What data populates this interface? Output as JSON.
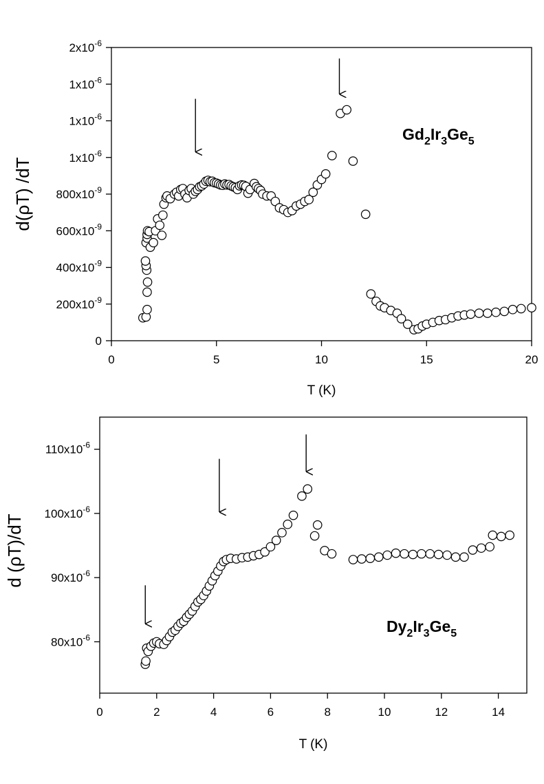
{
  "chart_data": [
    {
      "type": "scatter",
      "compound": {
        "base": [
          "Gd",
          "Ir",
          "Ge"
        ],
        "subs": [
          "2",
          "3",
          "5"
        ]
      },
      "xlabel": "T (K)",
      "ylabel": "d(ρT) /dT",
      "xlim": [
        0,
        20
      ],
      "ylim": [
        0,
        1600
      ],
      "x_ticks": [
        0,
        5,
        10,
        15,
        20
      ],
      "x_tick_labels": [
        "0",
        "5",
        "10",
        "15",
        "20"
      ],
      "y_ticks": [
        0,
        200,
        400,
        600,
        800,
        1000,
        1200,
        1400,
        1600
      ],
      "y_tick_labels": [
        {
          "mant": "0",
          "exp": ""
        },
        {
          "mant": "200x10",
          "exp": "-9"
        },
        {
          "mant": "400x10",
          "exp": "-9"
        },
        {
          "mant": "600x10",
          "exp": "-9"
        },
        {
          "mant": "800x10",
          "exp": "-9"
        },
        {
          "mant": "1x10",
          "exp": "-6"
        },
        {
          "mant": "1x10",
          "exp": "-6"
        },
        {
          "mant": "1x10",
          "exp": "-6"
        },
        {
          "mant": "2x10",
          "exp": "-6"
        }
      ],
      "y_unit_note": "values in units of 1e-9",
      "arrows": [
        {
          "x": 4.0,
          "y_top": 1320,
          "y_bottom": 1030
        },
        {
          "x": 10.85,
          "y_top": 1540,
          "y_bottom": 1345
        }
      ],
      "points": [
        [
          1.5,
          125
        ],
        [
          1.65,
          130
        ],
        [
          1.7,
          170
        ],
        [
          1.7,
          265
        ],
        [
          1.72,
          320
        ],
        [
          1.68,
          385
        ],
        [
          1.65,
          410
        ],
        [
          1.62,
          435
        ],
        [
          1.65,
          535
        ],
        [
          1.7,
          560
        ],
        [
          1.7,
          580
        ],
        [
          1.72,
          600
        ],
        [
          1.8,
          595
        ],
        [
          1.85,
          510
        ],
        [
          2.0,
          535
        ],
        [
          2.1,
          600
        ],
        [
          2.2,
          665
        ],
        [
          2.3,
          630
        ],
        [
          2.4,
          575
        ],
        [
          2.45,
          685
        ],
        [
          2.5,
          745
        ],
        [
          2.6,
          780
        ],
        [
          2.65,
          790
        ],
        [
          2.8,
          775
        ],
        [
          3.0,
          800
        ],
        [
          3.1,
          810
        ],
        [
          3.2,
          790
        ],
        [
          3.3,
          825
        ],
        [
          3.4,
          830
        ],
        [
          3.5,
          800
        ],
        [
          3.6,
          780
        ],
        [
          3.7,
          820
        ],
        [
          3.8,
          830
        ],
        [
          3.9,
          800
        ],
        [
          4.0,
          815
        ],
        [
          4.1,
          825
        ],
        [
          4.2,
          840
        ],
        [
          4.3,
          845
        ],
        [
          4.4,
          855
        ],
        [
          4.5,
          870
        ],
        [
          4.6,
          875
        ],
        [
          4.7,
          868
        ],
        [
          4.8,
          870
        ],
        [
          4.9,
          862
        ],
        [
          5.0,
          860
        ],
        [
          5.1,
          855
        ],
        [
          5.2,
          850
        ],
        [
          5.3,
          848
        ],
        [
          5.4,
          855
        ],
        [
          5.5,
          850
        ],
        [
          5.6,
          852
        ],
        [
          5.7,
          845
        ],
        [
          5.8,
          840
        ],
        [
          5.9,
          835
        ],
        [
          6.0,
          825
        ],
        [
          6.1,
          845
        ],
        [
          6.2,
          850
        ],
        [
          6.3,
          848
        ],
        [
          6.4,
          842
        ],
        [
          6.5,
          805
        ],
        [
          6.6,
          825
        ],
        [
          6.8,
          858
        ],
        [
          6.9,
          840
        ],
        [
          7.0,
          830
        ],
        [
          7.1,
          820
        ],
        [
          7.2,
          800
        ],
        [
          7.4,
          790
        ],
        [
          7.6,
          790
        ],
        [
          7.8,
          760
        ],
        [
          8.0,
          725
        ],
        [
          8.2,
          715
        ],
        [
          8.4,
          700
        ],
        [
          8.6,
          710
        ],
        [
          8.8,
          735
        ],
        [
          9.0,
          745
        ],
        [
          9.2,
          760
        ],
        [
          9.4,
          770
        ],
        [
          9.6,
          810
        ],
        [
          9.8,
          850
        ],
        [
          10.0,
          880
        ],
        [
          10.2,
          910
        ],
        [
          10.5,
          1010
        ],
        [
          10.9,
          1240
        ],
        [
          11.2,
          1260
        ],
        [
          11.5,
          980
        ],
        [
          12.1,
          690
        ],
        [
          12.35,
          255
        ],
        [
          12.6,
          215
        ],
        [
          12.8,
          190
        ],
        [
          13.0,
          180
        ],
        [
          13.3,
          165
        ],
        [
          13.6,
          150
        ],
        [
          13.8,
          120
        ],
        [
          14.1,
          90
        ],
        [
          14.4,
          60
        ],
        [
          14.6,
          65
        ],
        [
          14.8,
          80
        ],
        [
          15.0,
          90
        ],
        [
          15.3,
          100
        ],
        [
          15.6,
          110
        ],
        [
          15.9,
          115
        ],
        [
          16.2,
          125
        ],
        [
          16.5,
          135
        ],
        [
          16.8,
          140
        ],
        [
          17.1,
          145
        ],
        [
          17.5,
          150
        ],
        [
          17.9,
          150
        ],
        [
          18.3,
          155
        ],
        [
          18.7,
          160
        ],
        [
          19.1,
          170
        ],
        [
          19.5,
          175
        ],
        [
          20.0,
          180
        ]
      ]
    },
    {
      "type": "scatter",
      "compound": {
        "base": [
          "Dy",
          "Ir",
          "Ge"
        ],
        "subs": [
          "2",
          "3",
          "5"
        ]
      },
      "xlabel": "T (K)",
      "ylabel": "d (ρT)/dT",
      "xlim": [
        0,
        15
      ],
      "ylim": [
        72,
        115
      ],
      "x_ticks": [
        0,
        2,
        4,
        6,
        8,
        10,
        12,
        14
      ],
      "x_tick_labels": [
        "0",
        "2",
        "4",
        "6",
        "8",
        "10",
        "12",
        "14"
      ],
      "y_ticks": [
        80,
        90,
        100,
        110
      ],
      "y_tick_labels": [
        {
          "mant": "80x10",
          "exp": "-6"
        },
        {
          "mant": "90x10",
          "exp": "-6"
        },
        {
          "mant": "100x10",
          "exp": "-6"
        },
        {
          "mant": "110x10",
          "exp": "-6"
        }
      ],
      "y_unit_note": "values in units of 1e-6",
      "arrows": [
        {
          "x": 1.6,
          "y_top": 88.8,
          "y_bottom": 82.8
        },
        {
          "x": 4.2,
          "y_top": 108.5,
          "y_bottom": 100.2
        },
        {
          "x": 7.25,
          "y_top": 112.3,
          "y_bottom": 106.5
        }
      ],
      "points": [
        [
          1.6,
          76.5
        ],
        [
          1.62,
          77.0
        ],
        [
          1.65,
          79.0
        ],
        [
          1.7,
          78.5
        ],
        [
          1.8,
          79.3
        ],
        [
          1.9,
          79.8
        ],
        [
          2.0,
          80.0
        ],
        [
          2.1,
          79.7
        ],
        [
          2.25,
          79.6
        ],
        [
          2.35,
          80.2
        ],
        [
          2.45,
          80.8
        ],
        [
          2.55,
          81.5
        ],
        [
          2.65,
          81.8
        ],
        [
          2.75,
          82.4
        ],
        [
          2.85,
          82.9
        ],
        [
          2.95,
          83.2
        ],
        [
          3.05,
          83.8
        ],
        [
          3.15,
          84.3
        ],
        [
          3.25,
          84.8
        ],
        [
          3.35,
          85.5
        ],
        [
          3.45,
          86.2
        ],
        [
          3.55,
          86.6
        ],
        [
          3.65,
          87.2
        ],
        [
          3.75,
          87.9
        ],
        [
          3.85,
          88.7
        ],
        [
          3.95,
          89.5
        ],
        [
          4.05,
          90.3
        ],
        [
          4.15,
          91.0
        ],
        [
          4.25,
          91.8
        ],
        [
          4.35,
          92.5
        ],
        [
          4.45,
          92.8
        ],
        [
          4.6,
          93.0
        ],
        [
          4.8,
          92.9
        ],
        [
          5.0,
          93.1
        ],
        [
          5.2,
          93.2
        ],
        [
          5.4,
          93.4
        ],
        [
          5.6,
          93.6
        ],
        [
          5.8,
          94.0
        ],
        [
          6.0,
          94.8
        ],
        [
          6.2,
          95.8
        ],
        [
          6.4,
          97.0
        ],
        [
          6.6,
          98.3
        ],
        [
          6.8,
          99.7
        ],
        [
          7.1,
          102.7
        ],
        [
          7.3,
          103.8
        ],
        [
          7.55,
          96.5
        ],
        [
          7.65,
          98.2
        ],
        [
          7.9,
          94.2
        ],
        [
          8.15,
          93.7
        ],
        [
          8.9,
          92.8
        ],
        [
          9.2,
          92.9
        ],
        [
          9.5,
          93.0
        ],
        [
          9.8,
          93.2
        ],
        [
          10.1,
          93.5
        ],
        [
          10.4,
          93.8
        ],
        [
          10.7,
          93.7
        ],
        [
          11.0,
          93.6
        ],
        [
          11.3,
          93.7
        ],
        [
          11.6,
          93.7
        ],
        [
          11.9,
          93.6
        ],
        [
          12.2,
          93.5
        ],
        [
          12.5,
          93.2
        ],
        [
          12.8,
          93.2
        ],
        [
          13.1,
          94.3
        ],
        [
          13.4,
          94.6
        ],
        [
          13.7,
          94.8
        ],
        [
          13.8,
          96.6
        ],
        [
          14.1,
          96.4
        ],
        [
          14.4,
          96.6
        ]
      ]
    }
  ]
}
